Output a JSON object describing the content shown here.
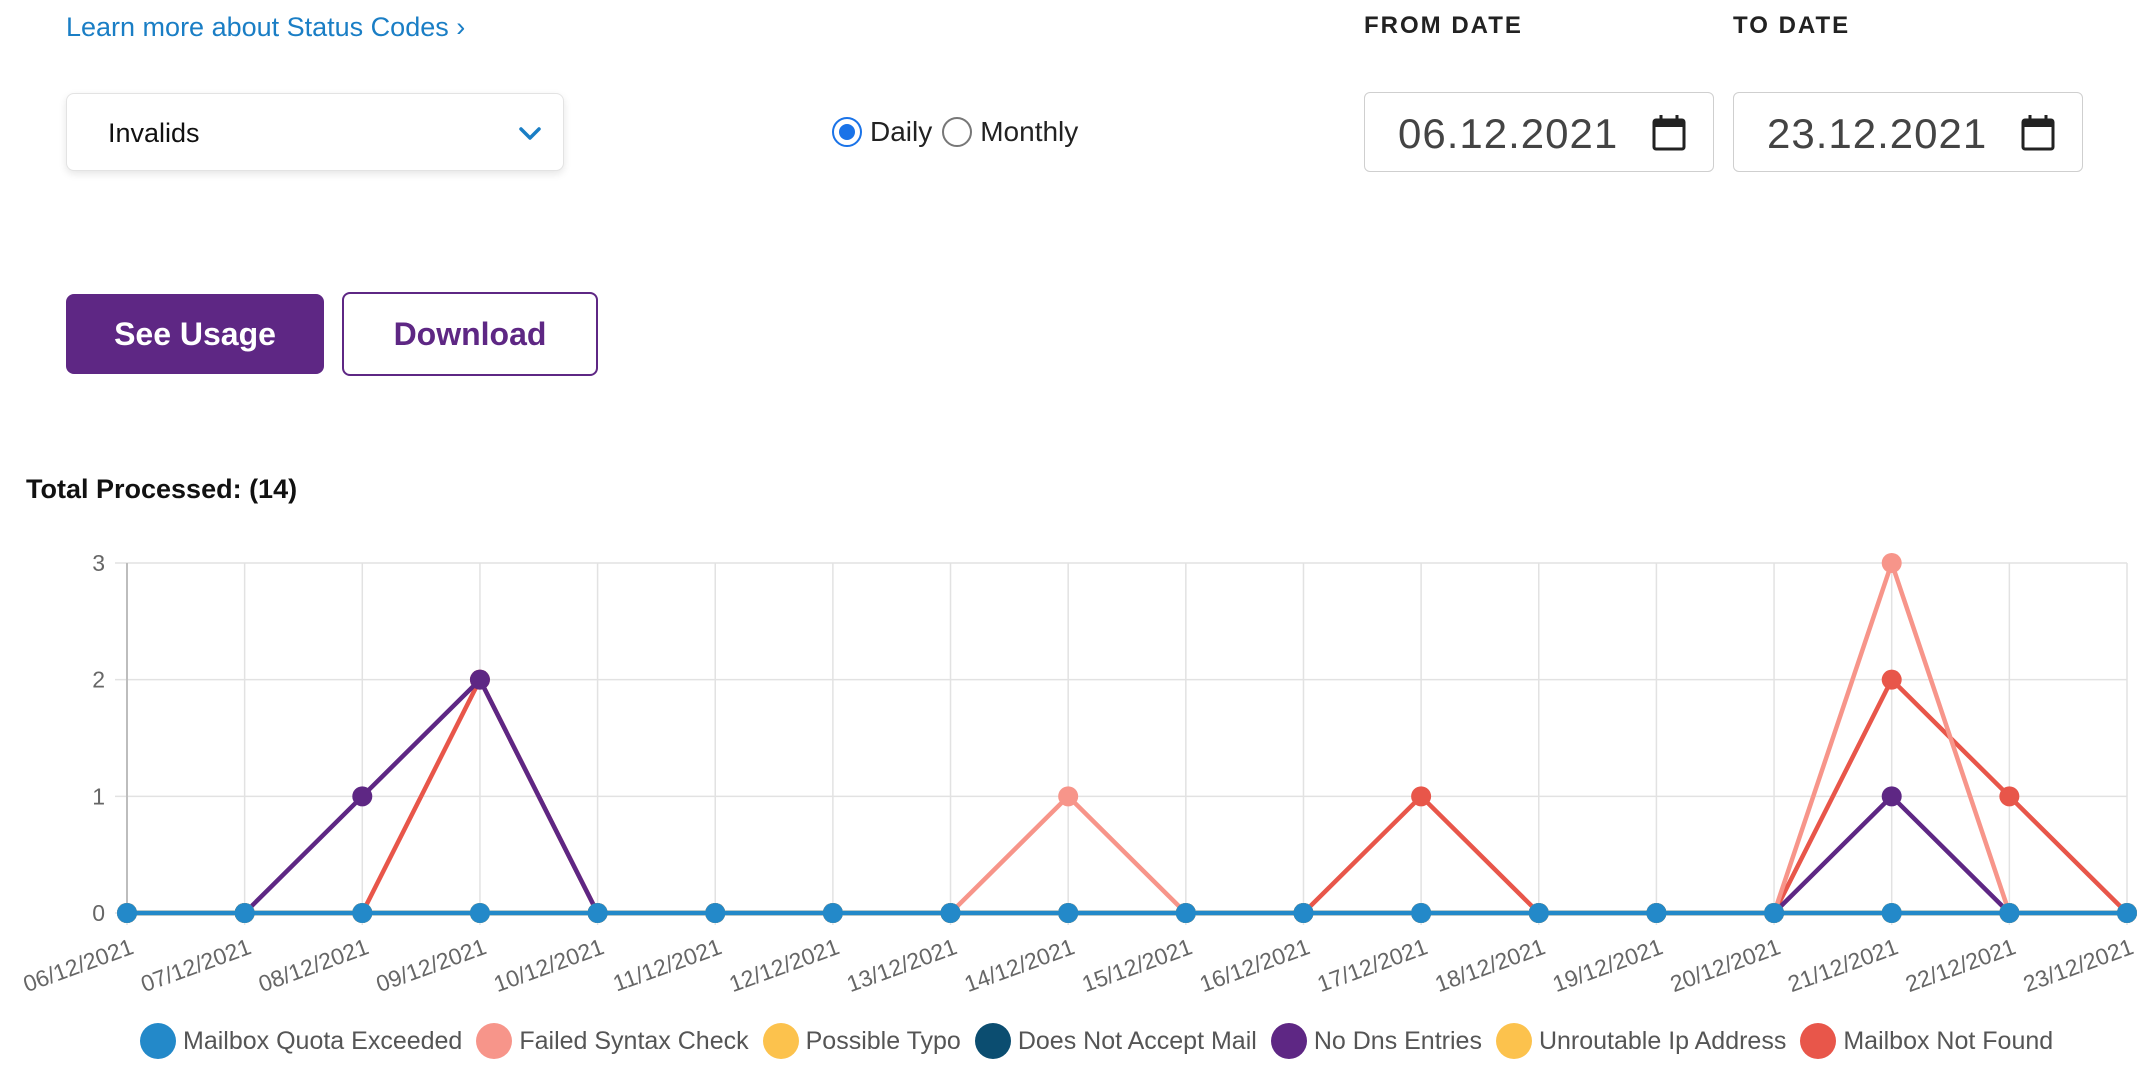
{
  "header": {
    "learn_link": "Learn more about Status Codes ›"
  },
  "filter": {
    "selected": "Invalids"
  },
  "period": {
    "daily_label": "Daily",
    "monthly_label": "Monthly",
    "selected": "Daily"
  },
  "dates": {
    "from_label": "FROM DATE",
    "from_value": "06.12.2021",
    "to_label": "TO DATE",
    "to_value": "23.12.2021"
  },
  "actions": {
    "see_usage": "See Usage",
    "download": "Download"
  },
  "summary": {
    "total_label": "Total Processed: (14)"
  },
  "chart_data": {
    "type": "line",
    "x": [
      "06/12/2021",
      "07/12/2021",
      "08/12/2021",
      "09/12/2021",
      "10/12/2021",
      "11/12/2021",
      "12/12/2021",
      "13/12/2021",
      "14/12/2021",
      "15/12/2021",
      "16/12/2021",
      "17/12/2021",
      "18/12/2021",
      "19/12/2021",
      "20/12/2021",
      "21/12/2021",
      "22/12/2021",
      "23/12/2021"
    ],
    "ylim": [
      0,
      3
    ],
    "yticks": [
      0,
      1,
      2,
      3
    ],
    "grid": true,
    "legend_position": "bottom",
    "series": [
      {
        "name": "Mailbox Quota Exceeded",
        "color": "#2389c9",
        "values": [
          0,
          0,
          0,
          0,
          0,
          0,
          0,
          0,
          0,
          0,
          0,
          0,
          0,
          0,
          0,
          0,
          0,
          0
        ]
      },
      {
        "name": "Failed Syntax Check",
        "color": "#f7958a",
        "values": [
          0,
          0,
          0,
          0,
          0,
          0,
          0,
          0,
          1,
          0,
          0,
          0,
          0,
          0,
          0,
          3,
          0,
          0
        ]
      },
      {
        "name": "Possible Typo",
        "color": "#fcc24d",
        "values": [
          0,
          0,
          0,
          0,
          0,
          0,
          0,
          0,
          0,
          0,
          0,
          0,
          0,
          0,
          0,
          0,
          0,
          0
        ]
      },
      {
        "name": "Does Not Accept Mail",
        "color": "#0b4d70",
        "values": [
          0,
          0,
          0,
          0,
          0,
          0,
          0,
          0,
          0,
          0,
          0,
          0,
          0,
          0,
          0,
          0,
          0,
          0
        ]
      },
      {
        "name": "No Dns Entries",
        "color": "#5e2784",
        "values": [
          0,
          0,
          1,
          2,
          0,
          0,
          0,
          0,
          0,
          0,
          0,
          0,
          0,
          0,
          0,
          1,
          0,
          0
        ]
      },
      {
        "name": "Unroutable Ip Address",
        "color": "#fcc24d",
        "values": [
          0,
          0,
          0,
          0,
          0,
          0,
          0,
          0,
          0,
          0,
          0,
          0,
          0,
          0,
          0,
          0,
          0,
          0
        ]
      },
      {
        "name": "Mailbox Not Found",
        "color": "#e8564a",
        "values": [
          0,
          0,
          0,
          2,
          0,
          0,
          0,
          0,
          0,
          0,
          0,
          1,
          0,
          0,
          0,
          2,
          1,
          0
        ]
      }
    ],
    "draw_order": [
      "Mailbox Not Found",
      "Failed Syntax Check",
      "No Dns Entries",
      "Unroutable Ip Address",
      "Does Not Accept Mail",
      "Possible Typo",
      "Mailbox Quota Exceeded"
    ]
  }
}
